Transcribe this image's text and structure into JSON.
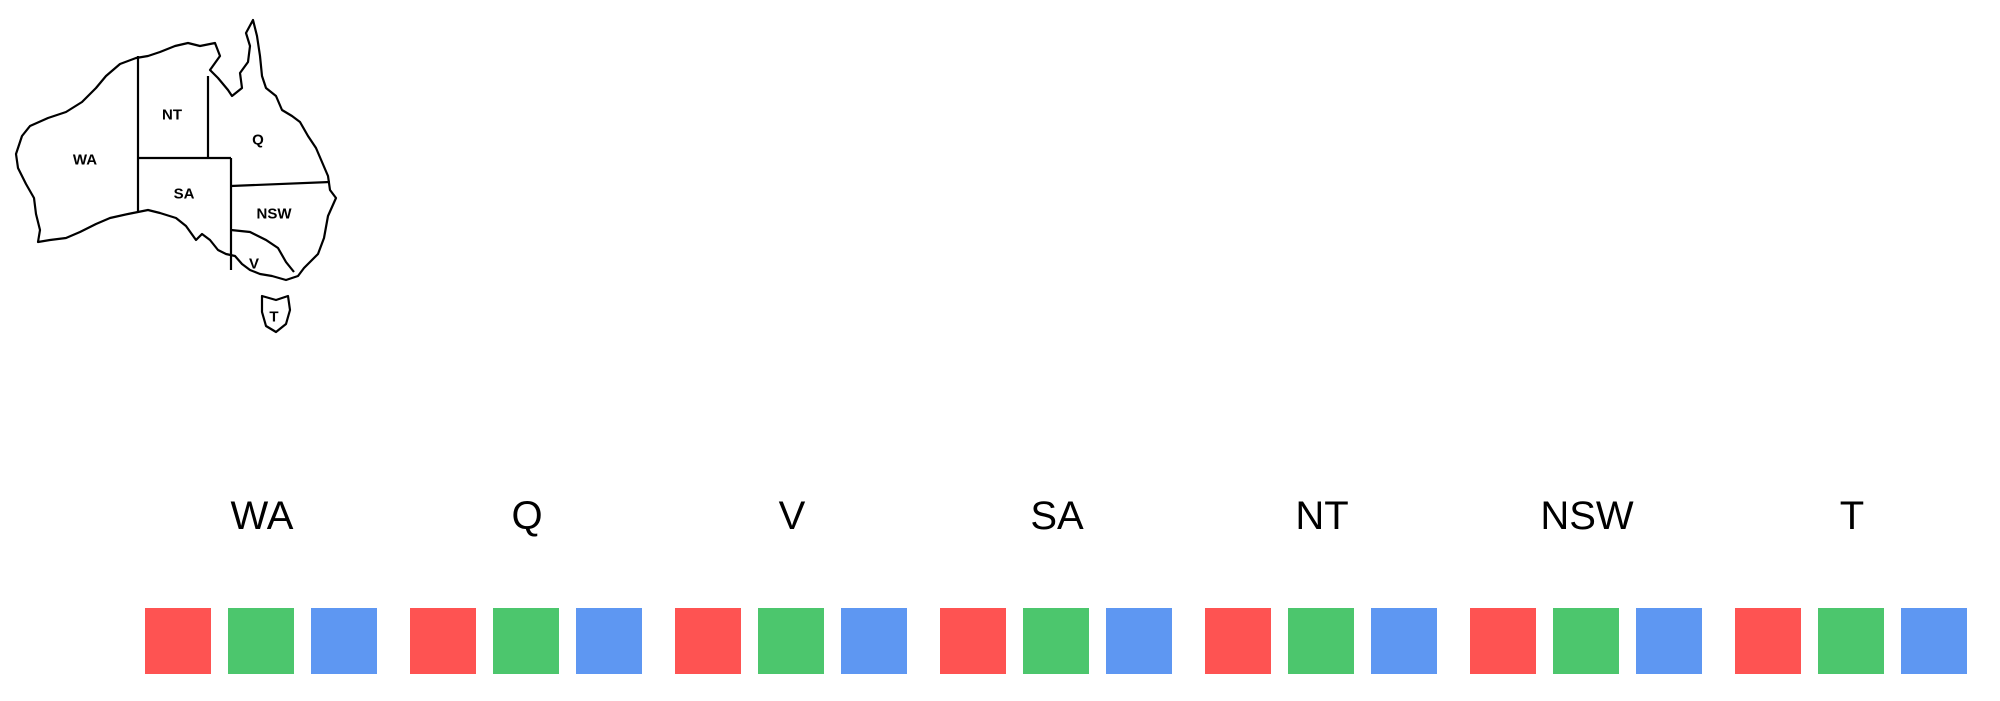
{
  "map": {
    "regions": [
      {
        "id": "WA",
        "label": "WA"
      },
      {
        "id": "NT",
        "label": "NT"
      },
      {
        "id": "Q",
        "label": "Q"
      },
      {
        "id": "SA",
        "label": "SA"
      },
      {
        "id": "NSW",
        "label": "NSW"
      },
      {
        "id": "V",
        "label": "V"
      },
      {
        "id": "T",
        "label": "T"
      }
    ]
  },
  "domains": [
    {
      "label": "WA",
      "colors": [
        "#fe5352",
        "#4cc66d",
        "#5e97f2"
      ]
    },
    {
      "label": "Q",
      "colors": [
        "#fe5352",
        "#4cc66d",
        "#5e97f2"
      ]
    },
    {
      "label": "V",
      "colors": [
        "#fe5352",
        "#4cc66d",
        "#5e97f2"
      ]
    },
    {
      "label": "SA",
      "colors": [
        "#fe5352",
        "#4cc66d",
        "#5e97f2"
      ]
    },
    {
      "label": "NT",
      "colors": [
        "#fe5352",
        "#4cc66d",
        "#5e97f2"
      ]
    },
    {
      "label": "NSW",
      "colors": [
        "#fe5352",
        "#4cc66d",
        "#5e97f2"
      ]
    },
    {
      "label": "T",
      "colors": [
        "#fe5352",
        "#4cc66d",
        "#5e97f2"
      ]
    }
  ]
}
